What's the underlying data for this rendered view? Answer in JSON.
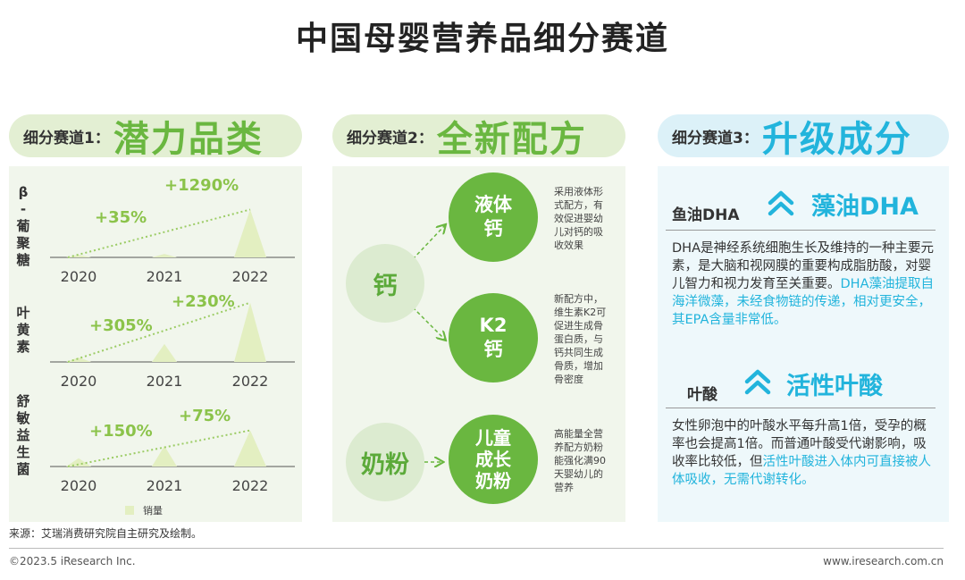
{
  "title": "中国母婴营养品细分赛道",
  "segments": [
    {
      "prefix": "细分赛道1：",
      "name": "潜力品类"
    },
    {
      "prefix": "细分赛道2：",
      "name": "全新配方"
    },
    {
      "prefix": "细分赛道3：",
      "name": "升级成分"
    }
  ],
  "chart_data": {
    "type": "area",
    "x": [
      "2020",
      "2021",
      "2022"
    ],
    "series": [
      {
        "name": "β-葡聚糖",
        "growth_labels": [
          "+35%",
          "+1290%"
        ],
        "values": [
          0.026,
          0.035,
          0.487
        ]
      },
      {
        "name": "叶黄素",
        "growth_labels": [
          "+305%",
          "+230%"
        ],
        "values": [
          0.045,
          0.183,
          0.603
        ]
      },
      {
        "name": "舒敏益生菌",
        "growth_labels": [
          "+150%",
          "+75%"
        ],
        "values": [
          0.084,
          0.21,
          0.368
        ]
      }
    ],
    "legend": "销量",
    "legend_position": "bottom-center"
  },
  "formulas": {
    "calcium_label": "钙",
    "milk_label": "奶粉",
    "items": [
      {
        "line1": "液体",
        "line2": "钙",
        "desc": [
          "采用液体形",
          "式配方，有",
          "效促进婴幼",
          "儿对钙的吸",
          "收效果"
        ]
      },
      {
        "line1": "K2",
        "line2": "钙",
        "desc": [
          "新配方中，",
          "维生素K2可",
          "促进生成骨",
          "蛋白质，与",
          "钙共同生成",
          "骨质，增加",
          "骨密度"
        ]
      },
      {
        "line1": "儿童",
        "line2": "成长",
        "line3": "奶粉",
        "desc": [
          "高能量全营",
          "养配方奶粉",
          "能强化满90",
          "天婴幼儿的",
          "营养"
        ]
      }
    ]
  },
  "ingredients": [
    {
      "old": "鱼油DHA",
      "new": "藻油DHA",
      "text": "DHA是神经系统细胞生长及维持的一种主要元素，是大脑和视网膜的重要构成脂肪酸，对婴儿智力和视力发育至关重要。",
      "highlight": "DHA藻油提取自海洋微藻，未经食物链的传递，相对更安全，其EPA含量非常低。"
    },
    {
      "old": "叶酸",
      "new": "活性叶酸",
      "text": "女性卵泡中的叶酸水平每升高1倍，受孕的概率也会提高1倍。而普通叶酸受代谢影响，吸收率比较低，但",
      "highlight": "活性叶酸进入体内可直接被人体吸收，无需代谢转化。"
    }
  ],
  "colors": {
    "green": "#6ab740",
    "blue": "#22b4dc",
    "area_fill": "#e3efc1"
  },
  "source": "来源：艾瑞消费研究院自主研究及绘制。",
  "copyright": "©2023.5 iResearch Inc.",
  "website": "www.iresearch.com.cn"
}
